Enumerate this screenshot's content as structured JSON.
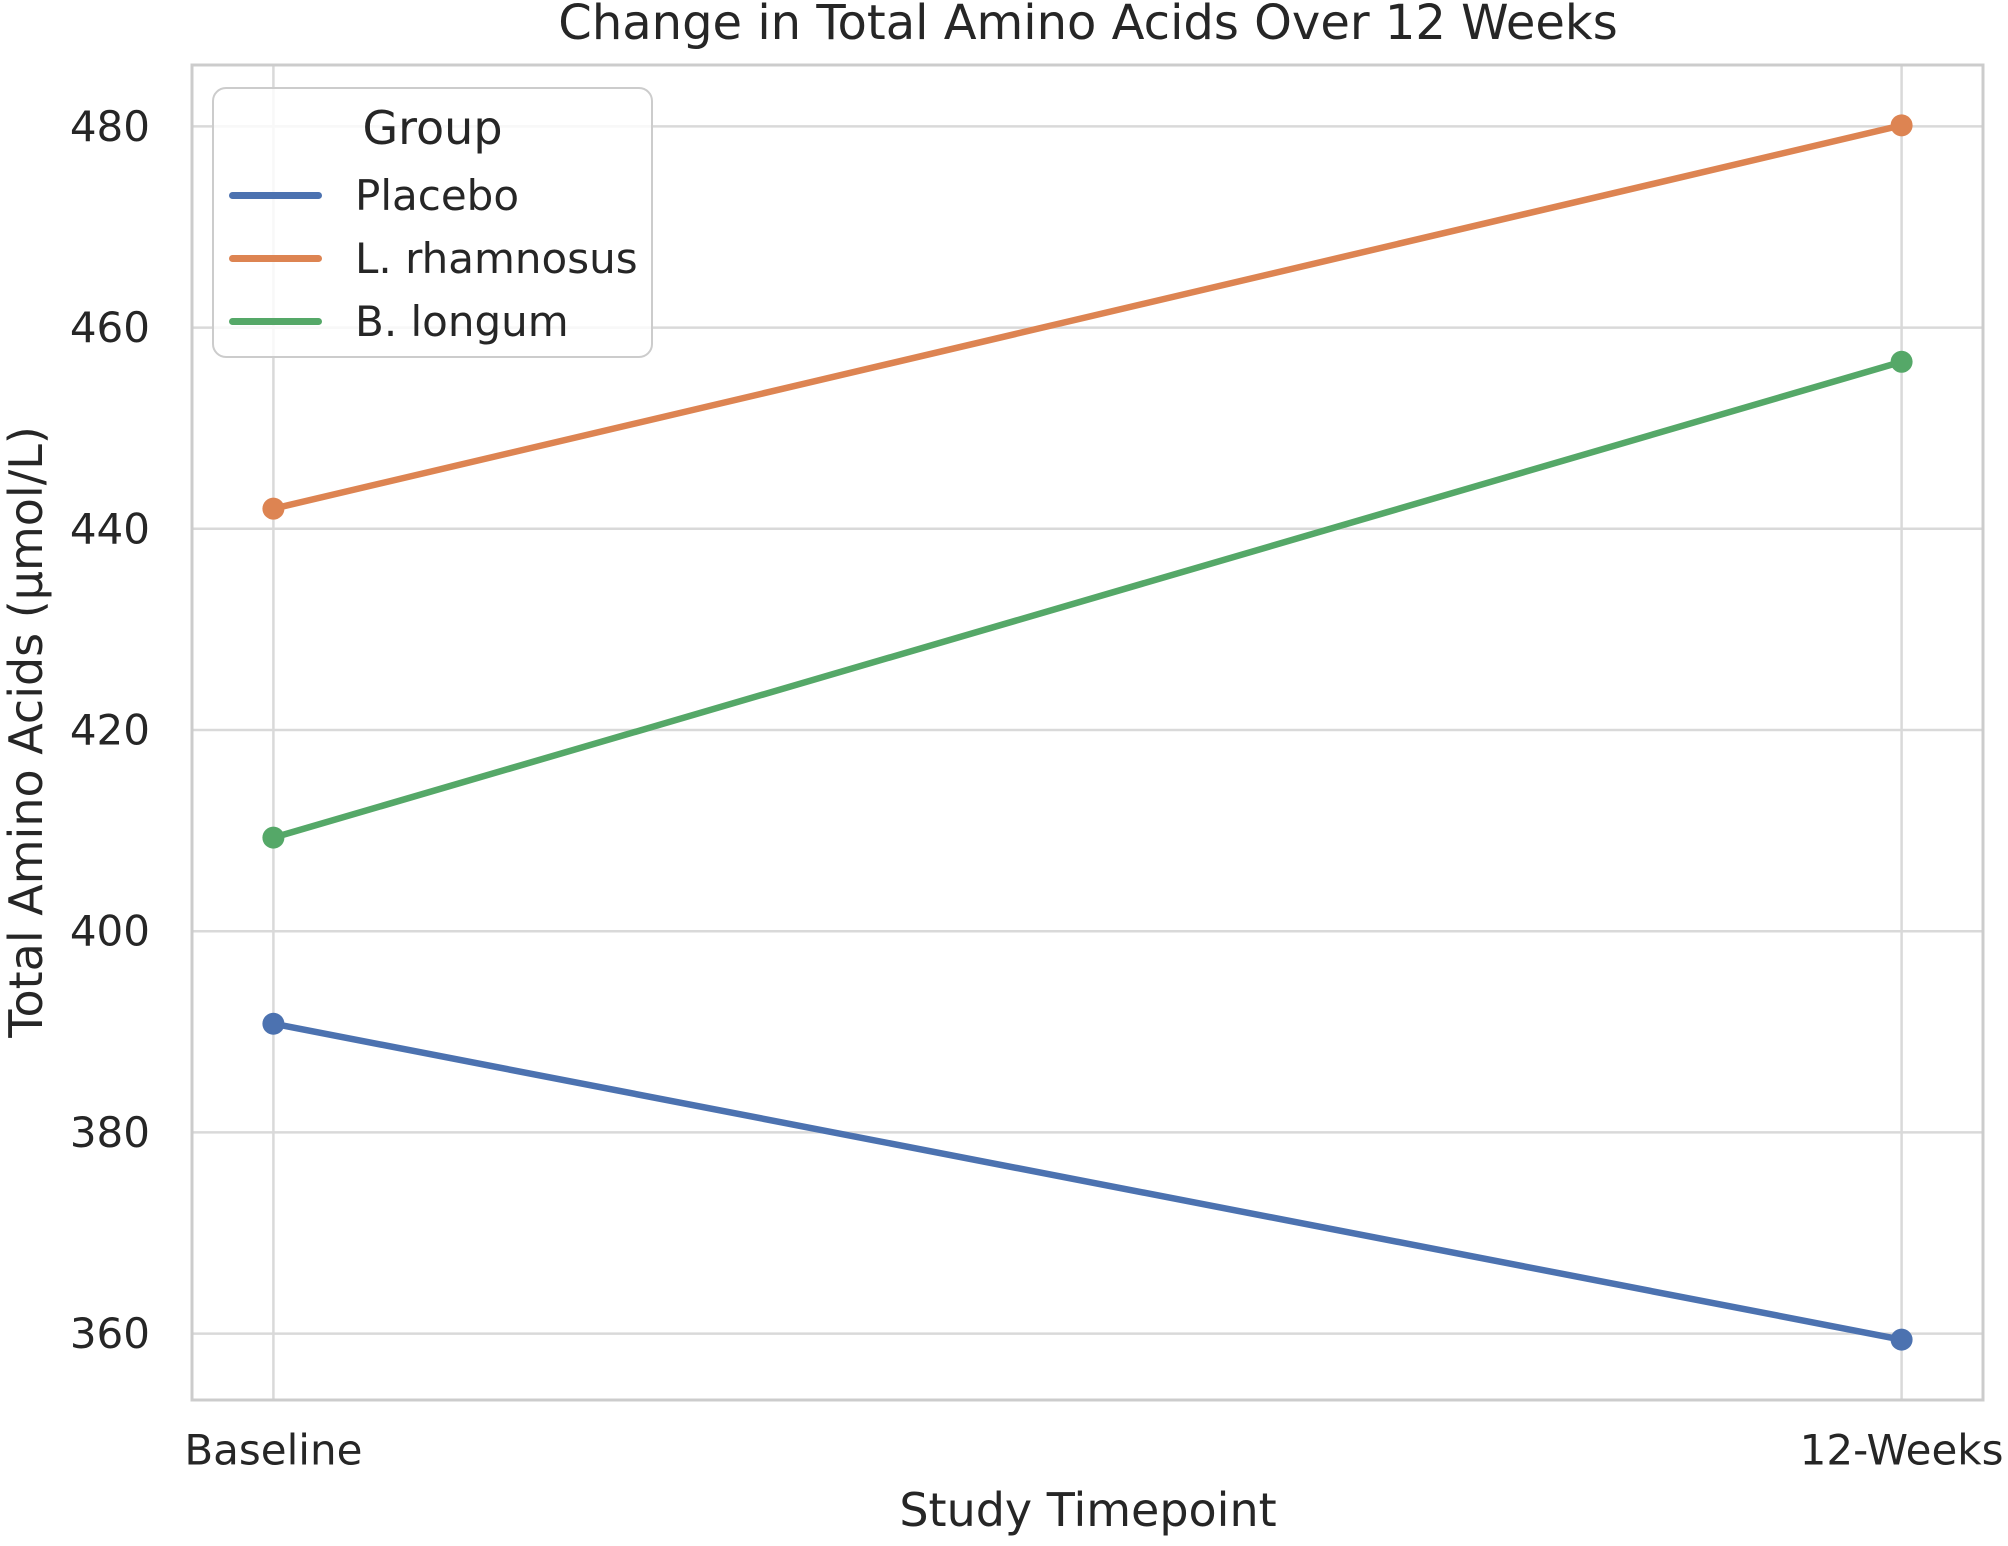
{
  "chart_data": {
    "type": "line",
    "title": "Change in Total Amino Acids Over 12 Weeks",
    "xlabel": "Study Timepoint",
    "ylabel": "Total Amino Acids (µmol/L)",
    "categories": [
      "Baseline",
      "12-Weeks"
    ],
    "series": [
      {
        "name": "Placebo",
        "color": "#4C72B0",
        "values": [
          390.8,
          359.4
        ]
      },
      {
        "name": "L. rhamnosus",
        "color": "#DD8452",
        "values": [
          442.0,
          480.1
        ]
      },
      {
        "name": "B. longum",
        "color": "#55A868",
        "values": [
          409.3,
          456.6
        ]
      }
    ],
    "legend": {
      "title": "Group",
      "position": "upper left",
      "entries": [
        "Placebo",
        "L. rhamnosus",
        "B. longum"
      ]
    },
    "y_ticks": [
      360,
      380,
      400,
      420,
      440,
      460,
      480
    ],
    "x_ticks": [
      "Baseline",
      "12-Weeks"
    ],
    "ylim": [
      353.4,
      486.1
    ],
    "xlim": [
      -0.05,
      1.05
    ],
    "grid": true,
    "styles": {
      "text_color": "#262626",
      "grid_color": "#d9d9d9",
      "spine_color": "#cccccc",
      "background": "#ffffff"
    }
  }
}
